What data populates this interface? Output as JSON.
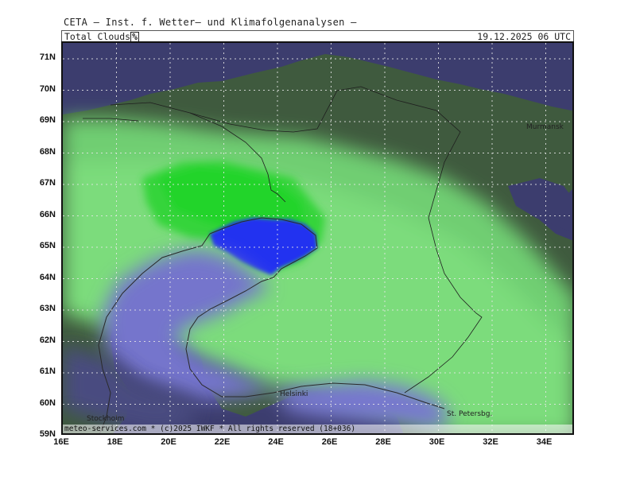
{
  "header": {
    "org": "CETA – Inst. f. Wetter– und Klimafolgenanalysen –",
    "parameter": "Total_Clouds",
    "unit": "%",
    "datetime": "19.12.2025 06 UTC"
  },
  "map": {
    "lat_labels": [
      "71N",
      "70N",
      "69N",
      "68N",
      "67N",
      "66N",
      "65N",
      "64N",
      "63N",
      "62N",
      "61N",
      "60N",
      "59N"
    ],
    "lon_labels": [
      "16E",
      "18E",
      "20E",
      "22E",
      "24E",
      "26E",
      "28E",
      "30E",
      "32E",
      "34E"
    ],
    "cities": [
      {
        "name": "Murmansk",
        "key": "murmansk"
      },
      {
        "name": "Helsinki",
        "key": "helsinki"
      },
      {
        "name": "St. Petersbg.",
        "key": "st-petersburg"
      },
      {
        "name": "Stockholm",
        "key": "stockholm"
      }
    ],
    "colors": {
      "land_dark": "#3f5a3e",
      "sea_dark": "#3c3d6e",
      "cloud_light_green": "#7bdc7b",
      "cloud_green": "#22d42b",
      "cloud_blue": "#2233f0",
      "cloud_lavender": "#7474cc"
    }
  },
  "footer": {
    "credit": "meteo-services.com * (c)2025 IWKF * All rights reserved (18+036)"
  }
}
